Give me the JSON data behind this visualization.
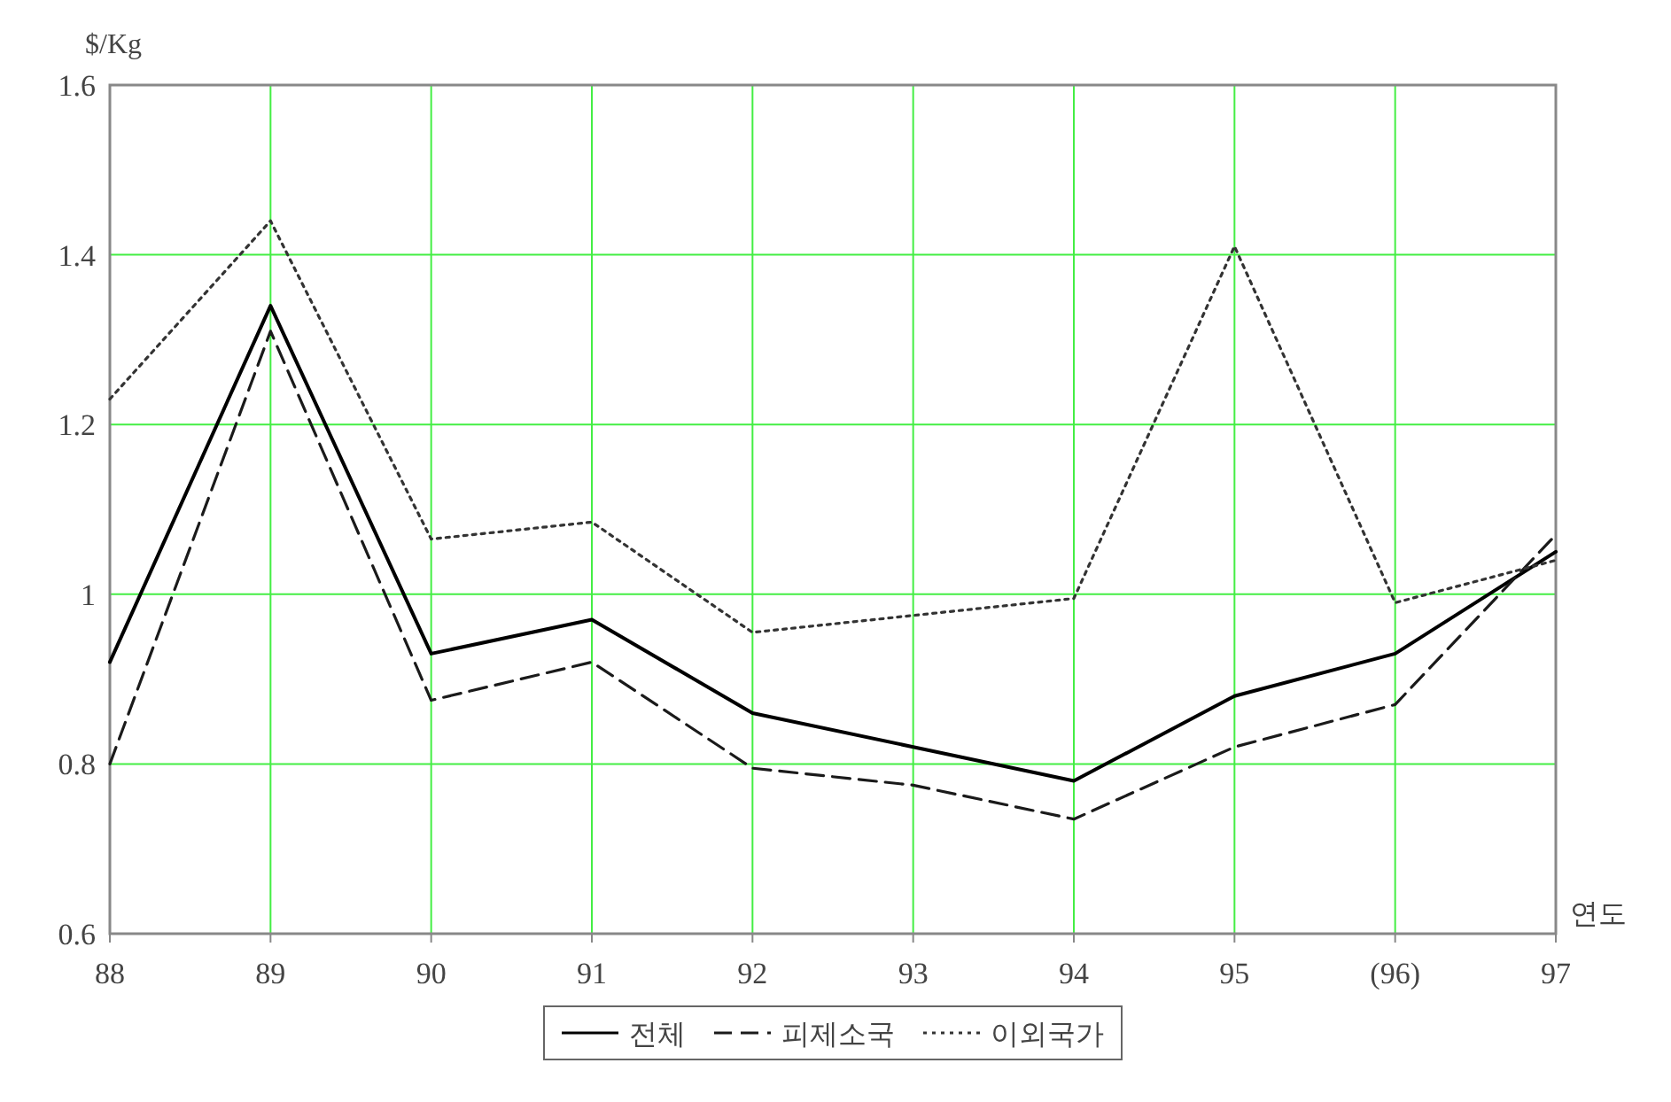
{
  "chart_data": {
    "type": "line",
    "xlabel": "연도",
    "ylabel": "$/Kg",
    "categories": [
      "88",
      "89",
      "90",
      "91",
      "92",
      "93",
      "94",
      "95",
      "(96)",
      "97"
    ],
    "ylim": [
      0.6,
      1.6
    ],
    "yticks": [
      0.6,
      0.8,
      1,
      1.2,
      1.4,
      1.6
    ],
    "grid": true,
    "legend": "bottom",
    "series": [
      {
        "name": "전체",
        "color": "#000000",
        "line_style": "solid",
        "values": [
          0.92,
          1.34,
          0.93,
          0.97,
          0.86,
          0.82,
          0.78,
          0.88,
          0.93,
          1.05
        ]
      },
      {
        "name": "피제소국",
        "color": "#1a1a1a",
        "line_style": "dashed",
        "values": [
          0.8,
          1.31,
          0.875,
          0.92,
          0.795,
          0.775,
          0.735,
          0.82,
          0.87,
          1.07
        ]
      },
      {
        "name": "이외국가",
        "color": "#333333",
        "line_style": "dotted",
        "values": [
          1.23,
          1.44,
          1.065,
          1.085,
          0.955,
          0.975,
          0.995,
          1.41,
          0.99,
          1.04
        ]
      }
    ]
  }
}
